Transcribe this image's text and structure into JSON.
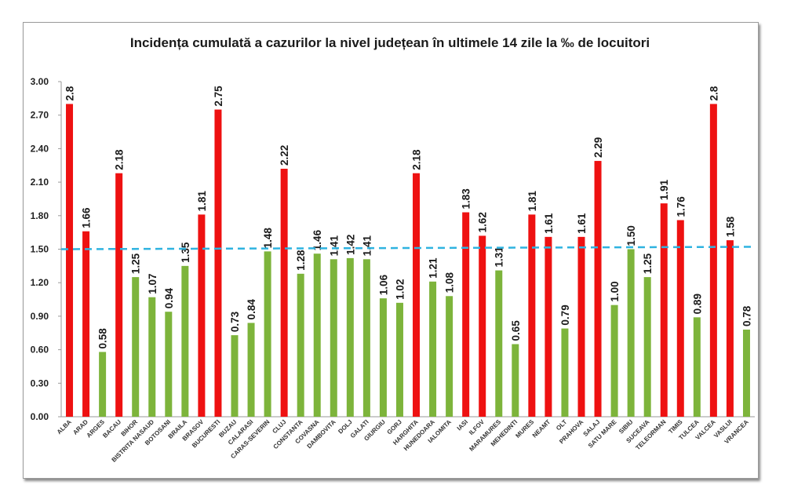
{
  "chart_data": {
    "type": "bar",
    "title": "Incidența cumulată a cazurilor la nivel județean în ultimele 14 zile la ‰ de locuitori",
    "xlabel": "",
    "ylabel": "",
    "ylim": [
      0,
      3.0
    ],
    "yticks": [
      "0.00",
      "0.30",
      "0.60",
      "0.90",
      "1.20",
      "1.50",
      "1.80",
      "2.10",
      "2.40",
      "2.70",
      "3.00"
    ],
    "threshold": 1.5,
    "grid": false,
    "legend": "none",
    "colors": {
      "above_threshold": "#ee1111",
      "below_threshold": "#7db43b",
      "threshold_line": "#2fb3e0"
    },
    "categories": [
      "ALBA",
      "ARAD",
      "ARGES",
      "BACAU",
      "BIHOR",
      "BISTRITA NASAUD",
      "BOTOSANI",
      "BRAILA",
      "BRASOV",
      "BUCURESTI",
      "BUZAU",
      "CALARASI",
      "CARAS-SEVERIN",
      "CLUJ",
      "CONSTANTA",
      "COVASNA",
      "DAMBOVITA",
      "DOLJ",
      "GALATI",
      "GIURGIU",
      "GORJ",
      "HARGHITA",
      "HUNEDOARA",
      "IALOMITA",
      "IASI",
      "ILFOV",
      "MARAMURES",
      "MEHEDINTI",
      "MURES",
      "NEAMT",
      "OLT",
      "PRAHOVA",
      "SALAJ",
      "SATU MARE",
      "SIBIU",
      "SUCEAVA",
      "TELEORMAN",
      "TIMIS",
      "TULCEA",
      "VALCEA",
      "VASLUI",
      "VRANCEA"
    ],
    "values": [
      2.8,
      1.66,
      0.58,
      2.18,
      1.25,
      1.07,
      0.94,
      1.35,
      1.81,
      2.75,
      0.73,
      0.84,
      1.48,
      2.22,
      1.28,
      1.46,
      1.41,
      1.42,
      1.41,
      1.06,
      1.02,
      2.18,
      1.21,
      1.08,
      1.83,
      1.62,
      1.31,
      0.65,
      1.81,
      1.61,
      0.79,
      1.61,
      2.29,
      1.0,
      1.5,
      1.25,
      1.91,
      1.76,
      0.89,
      2.8,
      1.58,
      0.78
    ],
    "value_labels": [
      "2.8",
      "1.66",
      "0.58",
      "2.18",
      "1.25",
      "1.07",
      "0.94",
      "1.35",
      "1.81",
      "2.75",
      "0.73",
      "0.84",
      "1.48",
      "2.22",
      "1.28",
      "1.46",
      "1.41",
      "1.42",
      "1.41",
      "1.06",
      "1.02",
      "2.18",
      "1.21",
      "1.08",
      "1.83",
      "1.62",
      "1.31",
      "0.65",
      "1.81",
      "1.61",
      "0.79",
      "1.61",
      "2.29",
      "1.00",
      "1.50",
      "1.25",
      "1.91",
      "1.76",
      "0.89",
      "2.8",
      "1.58",
      "0.78"
    ]
  }
}
